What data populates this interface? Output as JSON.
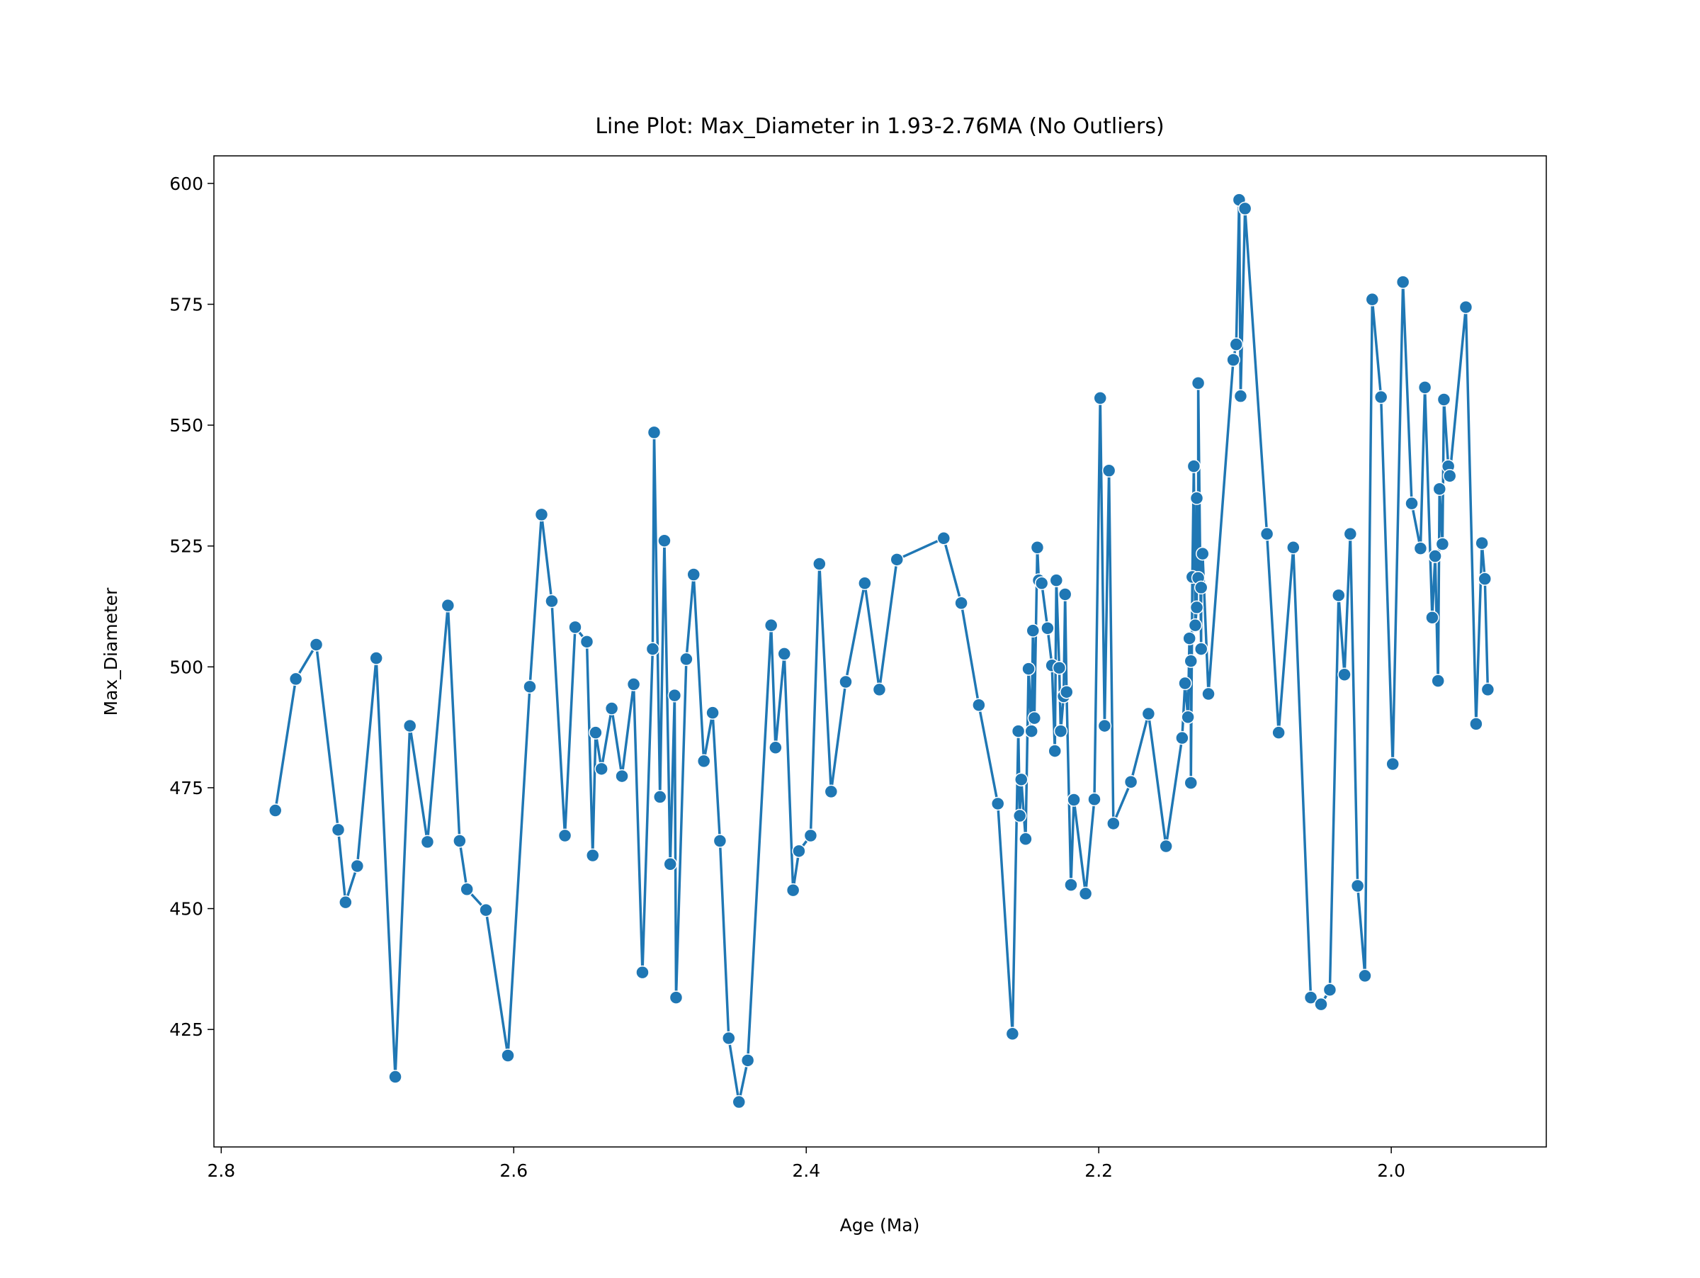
{
  "chart_data": {
    "type": "line",
    "title": "Line Plot: Max_Diameter in 1.93-2.76MA (No Outliers)",
    "x_label": "Age (Ma)",
    "y_label": "Max_Diameter",
    "color": "#1f77b4",
    "x": [
      2.763,
      2.749,
      2.735,
      2.72,
      2.715,
      2.707,
      2.694,
      2.681,
      2.671,
      2.659,
      2.645,
      2.637,
      2.632,
      2.619,
      2.604,
      2.589,
      2.581,
      2.574,
      2.565,
      2.558,
      2.55,
      2.546,
      2.544,
      2.54,
      2.533,
      2.526,
      2.518,
      2.512,
      2.505,
      2.504,
      2.5,
      2.497,
      2.493,
      2.49,
      2.489,
      2.482,
      2.477,
      2.47,
      2.464,
      2.459,
      2.453,
      2.446,
      2.44,
      2.424,
      2.421,
      2.415,
      2.409,
      2.405,
      2.397,
      2.391,
      2.383,
      2.373,
      2.36,
      2.35,
      2.338,
      2.306,
      2.294,
      2.282,
      2.269,
      2.259,
      2.255,
      2.254,
      2.253,
      2.25,
      2.248,
      2.246,
      2.245,
      2.244,
      2.242,
      2.241,
      2.239,
      2.235,
      2.232,
      2.23,
      2.229,
      2.227,
      2.226,
      2.224,
      2.223,
      2.222,
      2.219,
      2.217,
      2.209,
      2.203,
      2.199,
      2.196,
      2.193,
      2.19,
      2.178,
      2.166,
      2.154,
      2.143,
      2.141,
      2.139,
      2.138,
      2.137,
      2.137,
      2.136,
      2.135,
      2.134,
      2.133,
      2.133,
      2.132,
      2.132,
      2.13,
      2.13,
      2.129,
      2.125,
      2.108,
      2.106,
      2.104,
      2.103,
      2.1,
      2.085,
      2.077,
      2.067,
      2.055,
      2.048,
      2.042,
      2.036,
      2.032,
      2.028,
      2.023,
      2.018,
      2.013,
      2.007,
      1.999,
      1.992,
      1.986,
      1.98,
      1.977,
      1.972,
      1.97,
      1.968,
      1.967,
      1.965,
      1.964,
      1.961,
      1.96,
      1.949,
      1.942,
      1.938,
      1.936,
      1.934
    ],
    "values": [
      470.3,
      497.5,
      504.6,
      466.3,
      451.3,
      458.8,
      501.8,
      415.2,
      487.8,
      463.8,
      512.7,
      464.0,
      454.0,
      449.7,
      419.6,
      495.9,
      531.5,
      513.6,
      465.1,
      508.2,
      505.2,
      461.0,
      486.4,
      478.9,
      491.4,
      477.4,
      496.4,
      436.8,
      503.7,
      548.5,
      473.1,
      526.1,
      459.2,
      494.1,
      431.6,
      501.6,
      519.1,
      480.5,
      490.5,
      464.0,
      423.2,
      410.0,
      418.6,
      508.6,
      483.3,
      502.7,
      453.8,
      461.9,
      465.1,
      521.3,
      474.2,
      496.9,
      517.3,
      495.3,
      522.2,
      526.6,
      513.2,
      492.1,
      471.7,
      424.1,
      486.7,
      469.2,
      476.7,
      464.4,
      499.6,
      486.7,
      507.5,
      489.4,
      524.7,
      517.9,
      517.3,
      508.0,
      500.3,
      482.6,
      517.9,
      499.8,
      486.7,
      493.9,
      515.0,
      494.8,
      454.9,
      472.5,
      453.1,
      472.6,
      555.6,
      487.8,
      540.6,
      467.6,
      476.2,
      490.3,
      462.9,
      485.3,
      496.6,
      489.6,
      505.9,
      501.2,
      476.0,
      518.6,
      541.5,
      508.6,
      512.3,
      534.9,
      518.4,
      558.7,
      503.7,
      516.4,
      523.4,
      494.4,
      563.5,
      566.7,
      596.6,
      556.0,
      594.8,
      527.5,
      486.4,
      524.7,
      431.6,
      430.2,
      433.2,
      514.8,
      498.4,
      527.5,
      454.7,
      436.1,
      576.0,
      555.8,
      479.9,
      579.6,
      533.8,
      524.5,
      557.8,
      510.2,
      522.9,
      497.1,
      536.8,
      525.4,
      555.3,
      541.5,
      539.5,
      574.4,
      488.2,
      525.6,
      518.2,
      495.3
    ],
    "xlim": [
      2.805,
      1.894
    ],
    "xticks": [
      2.8,
      2.6,
      2.4,
      2.2,
      {
        "value": 2.0,
        "label": "2.0"
      }
    ],
    "ylim": [
      400.7,
      605.7
    ],
    "yticks": [
      425,
      450,
      475,
      500,
      525,
      550,
      575,
      600
    ],
    "grid": false
  }
}
